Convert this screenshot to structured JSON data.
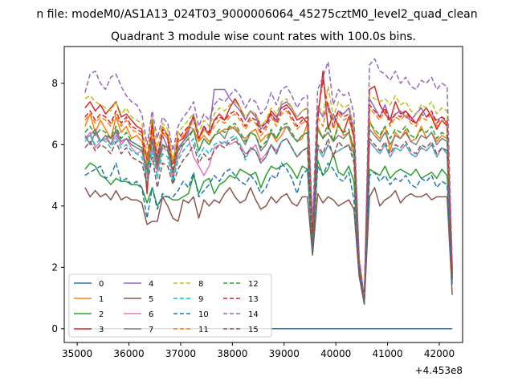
{
  "figure": {
    "suptitle": "n file: modeM0/AS1A13_024T03_9000006064_45275cztM0_level2_quad_clean",
    "offset_label": "+4.453e8"
  },
  "chart_data": {
    "type": "line",
    "title": "Quadrant 3 module wise count rates with 100.0s bins.",
    "xlabel": "",
    "ylabel": "",
    "x_offset": 445300000,
    "xlim": [
      34750,
      42450
    ],
    "ylim": [
      -0.45,
      9.2
    ],
    "xticks": [
      35000,
      36000,
      37000,
      38000,
      39000,
      40000,
      41000,
      42000
    ],
    "xtick_labels": [
      "35000",
      "36000",
      "37000",
      "38000",
      "39000",
      "40000",
      "41000",
      "42000"
    ],
    "yticks": [
      0,
      2,
      4,
      6,
      8
    ],
    "ytick_labels": [
      "0",
      "2",
      "4",
      "6",
      "8"
    ],
    "grid": false,
    "legend_position": "lower-left",
    "x_start": 35150,
    "x_step": 100,
    "colors": [
      "#1f77b4",
      "#ff7f0e",
      "#2ca02c",
      "#d62728",
      "#9467bd",
      "#8c564b",
      "#e377c2",
      "#7f7f7f",
      "#bcbd22",
      "#17becf",
      "#1f77b4",
      "#ff7f0e",
      "#2ca02c",
      "#d62728",
      "#9467bd",
      "#8c564b"
    ],
    "dashed": [
      false,
      false,
      false,
      false,
      false,
      false,
      false,
      false,
      true,
      true,
      true,
      true,
      true,
      true,
      true,
      true
    ],
    "series": [
      {
        "name": "0",
        "values": [
          0,
          0,
          0,
          0,
          0,
          0,
          0,
          0,
          0,
          0,
          0,
          0,
          0,
          0,
          0,
          0,
          0,
          0,
          0,
          0,
          0,
          0,
          0,
          0,
          0,
          0,
          0,
          0,
          0,
          0,
          0,
          0,
          0,
          0,
          0,
          0,
          0,
          0,
          0,
          0,
          0,
          0,
          0,
          0,
          0,
          0,
          0,
          0,
          0,
          0,
          0,
          0,
          0,
          0,
          0,
          0,
          0,
          0,
          0,
          0,
          0,
          0,
          0,
          0,
          0,
          0,
          0,
          0,
          0,
          0,
          0,
          0
        ]
      },
      {
        "name": "1",
        "values": [
          6.6,
          7.0,
          6.4,
          6.8,
          6.5,
          6.2,
          6.9,
          6.4,
          6.6,
          6.2,
          6.3,
          6.1,
          5.6,
          6.4,
          5.3,
          6.6,
          6.3,
          5.4,
          6.4,
          6.2,
          6.6,
          6.5,
          6.1,
          6.3,
          6.1,
          6.3,
          6.4,
          6.5,
          6.5,
          6.6,
          6.3,
          6.2,
          6.4,
          6.5,
          6.1,
          6.3,
          6.4,
          6.1,
          6.3,
          6.6,
          6.3,
          6.1,
          6.2,
          6.7,
          3.0,
          6.6,
          6.2,
          6.4,
          6.1,
          6.7,
          6.3,
          6.4,
          5.6,
          2.1,
          1.0,
          6.8,
          6.4,
          6.2,
          6.6,
          5.8,
          6.4,
          6.2,
          6.5,
          6.1,
          6.2,
          6.6,
          6.2,
          6.4,
          6.1,
          6.3,
          6.2,
          1.9
        ]
      },
      {
        "name": "2",
        "values": [
          5.2,
          5.4,
          5.3,
          5.0,
          4.9,
          4.7,
          4.9,
          4.8,
          4.8,
          4.7,
          4.7,
          4.6,
          4.1,
          4.6,
          4.0,
          4.3,
          4.3,
          4.2,
          4.2,
          4.3,
          4.4,
          5.0,
          4.4,
          4.8,
          4.9,
          4.4,
          4.7,
          4.8,
          5.0,
          4.9,
          5.2,
          5.1,
          5.0,
          5.1,
          4.6,
          5.0,
          5.3,
          5.2,
          5.3,
          5.4,
          5.2,
          4.9,
          5.3,
          5.2,
          2.6,
          5.5,
          5.0,
          5.2,
          5.7,
          5.1,
          5.0,
          5.3,
          4.8,
          2.0,
          0.9,
          5.2,
          5.1,
          5.0,
          5.3,
          4.9,
          5.1,
          5.2,
          5.1,
          5.0,
          5.2,
          4.9,
          5.0,
          5.1,
          4.9,
          5.2,
          5.0,
          1.7
        ]
      },
      {
        "name": "3",
        "values": [
          7.2,
          7.4,
          7.1,
          7.3,
          7.0,
          7.2,
          7.4,
          6.9,
          7.0,
          6.8,
          6.6,
          6.5,
          4.4,
          6.8,
          5.2,
          6.4,
          6.2,
          4.8,
          6.1,
          6.2,
          6.5,
          6.9,
          6.2,
          6.6,
          6.3,
          6.8,
          7.0,
          6.8,
          7.2,
          7.5,
          7.2,
          6.8,
          7.1,
          7.0,
          6.6,
          6.7,
          7.1,
          6.9,
          7.2,
          7.3,
          7.1,
          6.8,
          6.9,
          6.7,
          2.4,
          6.8,
          8.4,
          6.5,
          7.0,
          6.6,
          6.4,
          6.9,
          6.2,
          2.0,
          0.9,
          7.8,
          7.9,
          7.3,
          7.0,
          6.8,
          7.4,
          7.0,
          7.1,
          6.9,
          6.7,
          7.0,
          7.2,
          6.9,
          6.5,
          6.8,
          6.6,
          1.8
        ]
      },
      {
        "name": "4",
        "values": [
          6.2,
          6.3,
          6.5,
          6.1,
          6.3,
          6.2,
          6.4,
          6.0,
          6.2,
          6.1,
          6.0,
          5.9,
          5.2,
          6.2,
          5.5,
          6.3,
          5.9,
          5.4,
          5.9,
          6.1,
          6.4,
          7.0,
          6.2,
          6.5,
          6.4,
          7.8,
          7.8,
          7.8,
          7.5,
          7.3,
          7.1,
          6.8,
          7.1,
          6.9,
          6.5,
          6.7,
          7.0,
          6.8,
          7.3,
          7.4,
          7.2,
          6.9,
          7.1,
          7.2,
          3.1,
          7.2,
          6.9,
          7.3,
          6.8,
          7.1,
          7.0,
          7.2,
          6.4,
          2.2,
          1.0,
          7.5,
          7.2,
          6.9,
          7.3,
          6.8,
          7.0,
          7.1,
          6.9,
          6.8,
          7.0,
          7.2,
          6.9,
          7.0,
          6.8,
          6.9,
          6.7,
          1.9
        ]
      },
      {
        "name": "5",
        "values": [
          4.6,
          4.3,
          4.5,
          4.3,
          4.4,
          4.2,
          4.5,
          4.2,
          4.3,
          4.2,
          4.2,
          4.1,
          3.4,
          3.5,
          3.5,
          4.3,
          4.0,
          3.6,
          3.5,
          4.2,
          4.1,
          4.3,
          3.6,
          4.2,
          4.0,
          4.2,
          4.1,
          4.4,
          4.6,
          4.3,
          4.1,
          4.2,
          4.6,
          4.2,
          3.9,
          4.0,
          4.3,
          4.1,
          4.3,
          4.4,
          4.1,
          4.0,
          4.3,
          4.3,
          2.4,
          4.4,
          4.1,
          4.3,
          4.2,
          4.0,
          4.1,
          4.2,
          3.9,
          1.7,
          0.8,
          4.3,
          4.6,
          4.0,
          4.2,
          4.3,
          4.5,
          4.1,
          4.3,
          4.4,
          4.3,
          4.3,
          4.4,
          4.2,
          4.3,
          4.3,
          4.3,
          1.1
        ]
      },
      {
        "name": "6",
        "values": [
          6.2,
          6.4,
          5.9,
          6.1,
          6.2,
          6.0,
          6.3,
          6.0,
          6.2,
          5.9,
          5.7,
          5.8,
          5.0,
          5.9,
          5.1,
          5.9,
          5.8,
          5.0,
          5.6,
          6.0,
          6.2,
          5.6,
          5.3,
          5.0,
          5.3,
          5.9,
          6.0,
          6.1,
          6.0,
          6.1,
          6.0,
          5.7,
          5.8,
          6.0,
          5.5,
          5.7,
          6.0,
          5.8,
          6.1,
          6.2,
          5.9,
          5.6,
          5.8,
          5.9,
          2.8,
          5.9,
          5.6,
          6.0,
          5.7,
          5.8,
          5.9,
          6.0,
          5.7,
          2.1,
          1.0,
          6.1,
          5.9,
          5.7,
          6.0,
          5.6,
          5.9,
          5.8,
          6.0,
          5.7,
          5.6,
          5.9,
          5.8,
          6.0,
          5.6,
          5.9,
          5.7,
          1.7
        ]
      },
      {
        "name": "7",
        "values": [
          6.3,
          6.0,
          6.4,
          6.1,
          6.3,
          6.0,
          6.5,
          6.1,
          6.2,
          6.0,
          5.9,
          5.8,
          5.3,
          6.1,
          5.2,
          6.0,
          5.9,
          5.1,
          5.8,
          6.1,
          6.3,
          6.5,
          5.8,
          6.2,
          6.0,
          6.3,
          6.4,
          6.2,
          6.6,
          6.5,
          6.3,
          6.0,
          6.4,
          6.3,
          5.8,
          6.0,
          6.4,
          6.2,
          6.5,
          6.6,
          6.3,
          6.1,
          6.3,
          6.4,
          3.0,
          6.5,
          6.2,
          6.4,
          6.1,
          6.3,
          6.2,
          6.4,
          5.9,
          2.0,
          0.9,
          6.5,
          6.3,
          6.1,
          6.4,
          6.0,
          6.3,
          6.2,
          6.4,
          6.1,
          6.0,
          6.3,
          6.2,
          6.4,
          6.0,
          6.2,
          6.1,
          1.6
        ]
      },
      {
        "name": "8",
        "values": [
          7.5,
          7.6,
          7.4,
          7.3,
          7.2,
          7.1,
          7.4,
          7.0,
          7.2,
          6.9,
          6.8,
          6.7,
          5.7,
          6.9,
          5.9,
          6.7,
          6.5,
          5.5,
          6.4,
          6.6,
          6.8,
          7.0,
          6.4,
          6.8,
          6.6,
          7.0,
          7.2,
          7.1,
          7.3,
          7.4,
          7.2,
          6.9,
          7.1,
          7.0,
          6.6,
          6.8,
          7.2,
          7.0,
          7.4,
          7.5,
          7.2,
          6.9,
          7.1,
          7.2,
          3.3,
          7.3,
          7.0,
          7.9,
          6.9,
          7.4,
          7.2,
          7.3,
          6.6,
          2.3,
          1.0,
          7.6,
          7.5,
          7.4,
          7.5,
          7.3,
          7.6,
          7.3,
          7.4,
          7.1,
          7.0,
          7.3,
          7.2,
          7.4,
          7.0,
          7.2,
          7.1,
          2.0
        ]
      },
      {
        "name": "9",
        "values": [
          6.1,
          6.3,
          6.0,
          6.2,
          6.1,
          5.9,
          6.2,
          5.9,
          6.0,
          5.8,
          5.7,
          5.6,
          4.9,
          5.8,
          4.9,
          5.7,
          5.6,
          4.8,
          5.5,
          5.8,
          6.0,
          6.2,
          5.6,
          5.9,
          5.7,
          6.0,
          6.1,
          6.0,
          6.2,
          6.3,
          6.0,
          5.5,
          5.9,
          5.8,
          5.4,
          5.6,
          6.0,
          5.7,
          6.1,
          6.2,
          5.9,
          5.6,
          5.8,
          5.9,
          2.8,
          5.9,
          5.6,
          6.0,
          5.7,
          5.8,
          5.9,
          6.0,
          5.6,
          2.0,
          0.9,
          6.1,
          5.9,
          5.7,
          6.0,
          5.6,
          5.9,
          5.8,
          6.0,
          5.7,
          5.6,
          5.9,
          5.8,
          6.0,
          5.6,
          5.9,
          5.7,
          1.6
        ]
      },
      {
        "name": "10",
        "values": [
          5.0,
          5.1,
          5.2,
          5.3,
          4.9,
          5.0,
          5.4,
          4.8,
          4.9,
          4.7,
          4.8,
          4.6,
          3.6,
          4.6,
          3.9,
          4.4,
          4.3,
          4.3,
          4.5,
          4.8,
          4.6,
          5.1,
          4.3,
          4.5,
          4.7,
          5.0,
          4.8,
          5.1,
          5.2,
          5.0,
          4.8,
          4.7,
          5.0,
          4.8,
          4.4,
          4.6,
          5.0,
          4.9,
          5.4,
          5.2,
          4.9,
          4.4,
          5.0,
          5.2,
          2.5,
          5.3,
          5.0,
          5.4,
          5.2,
          4.9,
          4.8,
          5.1,
          4.2,
          1.8,
          0.8,
          5.0,
          5.1,
          4.8,
          5.0,
          4.7,
          4.9,
          4.8,
          5.0,
          4.7,
          4.6,
          4.9,
          4.8,
          5.0,
          4.6,
          4.8,
          4.7,
          1.4
        ]
      },
      {
        "name": "11",
        "values": [
          6.8,
          7.0,
          6.7,
          6.9,
          6.8,
          6.6,
          7.0,
          6.6,
          6.8,
          6.5,
          6.4,
          6.3,
          5.4,
          6.5,
          5.7,
          6.4,
          6.2,
          5.4,
          6.1,
          6.3,
          6.5,
          6.8,
          6.1,
          6.5,
          6.3,
          6.6,
          6.8,
          6.7,
          6.9,
          7.0,
          6.8,
          6.5,
          6.8,
          6.7,
          6.3,
          6.5,
          6.9,
          6.6,
          7.0,
          7.1,
          6.8,
          6.5,
          6.7,
          6.8,
          3.1,
          6.9,
          6.6,
          7.4,
          6.5,
          7.0,
          6.8,
          6.9,
          6.2,
          2.2,
          1.0,
          7.2,
          7.0,
          6.8,
          7.1,
          6.6,
          6.9,
          6.8,
          7.0,
          6.7,
          6.6,
          6.9,
          6.8,
          7.0,
          6.6,
          6.8,
          6.7,
          1.8
        ]
      },
      {
        "name": "12",
        "values": [
          6.4,
          6.6,
          6.3,
          6.5,
          6.4,
          6.2,
          6.6,
          6.2,
          6.4,
          6.1,
          6.0,
          5.9,
          5.1,
          6.1,
          5.4,
          6.0,
          5.8,
          5.1,
          5.8,
          6.0,
          6.2,
          6.5,
          5.8,
          6.2,
          6.0,
          6.3,
          6.5,
          6.4,
          6.6,
          6.7,
          6.4,
          6.1,
          6.4,
          6.3,
          5.9,
          6.1,
          6.5,
          6.2,
          6.6,
          6.7,
          6.4,
          6.1,
          6.3,
          6.4,
          2.9,
          6.5,
          6.2,
          6.7,
          6.1,
          6.6,
          6.4,
          6.5,
          5.8,
          2.1,
          0.9,
          6.7,
          6.5,
          6.3,
          6.6,
          6.2,
          6.5,
          6.4,
          6.6,
          6.3,
          6.2,
          6.5,
          6.4,
          6.6,
          6.2,
          6.4,
          6.3,
          1.7
        ]
      },
      {
        "name": "13",
        "values": [
          6.9,
          7.1,
          6.8,
          7.0,
          6.9,
          6.7,
          7.1,
          6.7,
          6.9,
          6.6,
          6.5,
          6.4,
          5.5,
          6.6,
          5.6,
          6.5,
          6.3,
          5.2,
          6.2,
          6.4,
          6.6,
          6.9,
          6.2,
          6.6,
          6.4,
          6.8,
          6.9,
          6.8,
          7.0,
          7.1,
          6.9,
          6.6,
          6.9,
          6.8,
          6.4,
          6.6,
          7.0,
          6.7,
          7.1,
          7.2,
          6.9,
          6.6,
          6.8,
          6.9,
          3.2,
          7.0,
          8.1,
          7.2,
          6.6,
          7.1,
          6.9,
          7.0,
          6.3,
          2.1,
          1.0,
          7.3,
          7.1,
          6.9,
          7.2,
          6.7,
          7.0,
          6.9,
          7.1,
          6.8,
          6.7,
          7.0,
          6.9,
          7.1,
          6.7,
          6.9,
          6.8,
          1.8
        ]
      },
      {
        "name": "14",
        "values": [
          7.7,
          8.3,
          8.4,
          8.0,
          7.8,
          8.2,
          8.3,
          7.9,
          7.6,
          7.4,
          7.3,
          7.0,
          6.0,
          7.1,
          6.2,
          6.9,
          6.7,
          5.8,
          6.6,
          6.9,
          7.1,
          7.4,
          6.6,
          7.0,
          6.8,
          7.3,
          7.5,
          7.4,
          7.6,
          7.8,
          7.6,
          7.2,
          7.5,
          7.4,
          7.0,
          7.2,
          7.7,
          7.3,
          7.8,
          7.9,
          7.6,
          7.2,
          7.5,
          7.6,
          3.5,
          7.8,
          8.2,
          8.7,
          7.3,
          7.8,
          7.6,
          7.7,
          7.0,
          2.3,
          1.0,
          8.6,
          8.8,
          8.4,
          8.3,
          8.1,
          8.4,
          8.0,
          8.2,
          7.9,
          7.8,
          8.1,
          8.0,
          8.2,
          7.8,
          8.0,
          7.9,
          2.1
        ]
      },
      {
        "name": "15",
        "values": [
          5.9,
          6.1,
          5.8,
          6.0,
          5.9,
          5.7,
          6.1,
          5.7,
          5.9,
          5.6,
          5.5,
          5.4,
          4.7,
          5.6,
          4.6,
          5.4,
          5.3,
          4.7,
          5.2,
          5.5,
          5.7,
          6.0,
          5.4,
          5.7,
          5.5,
          5.8,
          6.0,
          5.9,
          6.1,
          6.2,
          5.9,
          5.6,
          5.9,
          5.8,
          5.4,
          5.6,
          6.0,
          5.7,
          6.1,
          6.2,
          5.9,
          5.6,
          5.8,
          5.9,
          2.7,
          6.0,
          5.7,
          6.2,
          5.6,
          6.1,
          5.9,
          6.0,
          5.4,
          1.9,
          0.9,
          6.2,
          6.0,
          5.8,
          6.1,
          5.7,
          6.0,
          5.9,
          6.1,
          5.8,
          5.7,
          6.0,
          5.9,
          6.1,
          5.7,
          5.9,
          5.8,
          1.6
        ]
      }
    ]
  }
}
